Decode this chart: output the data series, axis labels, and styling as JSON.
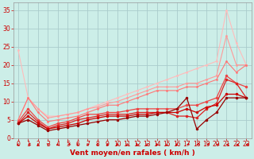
{
  "title": "",
  "xlabel": "Vent moyen/en rafales ( km/h )",
  "xlim": [
    -0.5,
    23.5
  ],
  "ylim": [
    0,
    37
  ],
  "yticks": [
    0,
    5,
    10,
    15,
    20,
    25,
    30,
    35
  ],
  "xticks": [
    0,
    1,
    2,
    3,
    4,
    5,
    6,
    7,
    8,
    9,
    10,
    11,
    12,
    13,
    14,
    15,
    16,
    17,
    18,
    19,
    20,
    21,
    22,
    23
  ],
  "background_color": "#cceee8",
  "grid_color": "#aacccc",
  "lines": [
    {
      "x": [
        0,
        1,
        2,
        3,
        4,
        5,
        6,
        7,
        8,
        9,
        10,
        11,
        12,
        13,
        14,
        15,
        16,
        17,
        18,
        19,
        20,
        21,
        22,
        23
      ],
      "y": [
        24,
        11,
        8,
        6,
        6,
        6.5,
        7,
        8,
        9,
        10,
        11,
        12,
        13,
        14,
        15,
        16,
        17,
        18,
        19,
        20,
        21,
        35,
        26,
        20
      ],
      "color": "#ffbbbb",
      "linewidth": 0.8,
      "marker": "o",
      "markersize": 2.0
    },
    {
      "x": [
        0,
        1,
        2,
        3,
        4,
        5,
        6,
        7,
        8,
        9,
        10,
        11,
        12,
        13,
        14,
        15,
        16,
        17,
        18,
        19,
        20,
        21,
        22,
        23
      ],
      "y": [
        5,
        11,
        8,
        5.5,
        6,
        6.5,
        7,
        8,
        8.5,
        9.5,
        10,
        11,
        12,
        13,
        14,
        14,
        14,
        15,
        15,
        16,
        17,
        28,
        20,
        20
      ],
      "color": "#ff9999",
      "linewidth": 0.8,
      "marker": "o",
      "markersize": 2.0
    },
    {
      "x": [
        0,
        1,
        2,
        3,
        4,
        5,
        6,
        7,
        8,
        9,
        10,
        11,
        12,
        13,
        14,
        15,
        16,
        17,
        18,
        19,
        20,
        21,
        22,
        23
      ],
      "y": [
        5,
        11,
        7,
        4.5,
        5,
        5.5,
        6,
        7,
        8,
        9,
        9,
        10,
        11,
        12,
        13,
        13,
        13,
        14,
        14,
        15,
        16,
        21,
        18,
        20
      ],
      "color": "#ff7777",
      "linewidth": 0.8,
      "marker": "o",
      "markersize": 2.0
    },
    {
      "x": [
        0,
        1,
        2,
        3,
        4,
        5,
        6,
        7,
        8,
        9,
        10,
        11,
        12,
        13,
        14,
        15,
        16,
        17,
        18,
        19,
        20,
        21,
        22,
        23
      ],
      "y": [
        4.5,
        8,
        5,
        3,
        4,
        4.5,
        5.5,
        6.5,
        6.5,
        7,
        7,
        7.5,
        8,
        8,
        8,
        8,
        8,
        9,
        9,
        10,
        11,
        17,
        15,
        14
      ],
      "color": "#ee4444",
      "linewidth": 0.9,
      "marker": "o",
      "markersize": 2.5
    },
    {
      "x": [
        0,
        1,
        2,
        3,
        4,
        5,
        6,
        7,
        8,
        9,
        10,
        11,
        12,
        13,
        14,
        15,
        16,
        17,
        18,
        19,
        20,
        21,
        22,
        23
      ],
      "y": [
        4,
        7,
        4.5,
        2.5,
        3.5,
        4,
        5,
        5.5,
        6,
        6.5,
        6.5,
        6.5,
        7,
        7,
        7,
        7,
        6,
        6,
        5.5,
        8,
        9.5,
        16,
        15,
        11
      ],
      "color": "#dd2222",
      "linewidth": 0.9,
      "marker": "o",
      "markersize": 2.5
    },
    {
      "x": [
        0,
        1,
        2,
        3,
        4,
        5,
        6,
        7,
        8,
        9,
        10,
        11,
        12,
        13,
        14,
        15,
        16,
        17,
        18,
        19,
        20,
        21,
        22,
        23
      ],
      "y": [
        4,
        6,
        4,
        2.5,
        3,
        3.5,
        4,
        5,
        5.5,
        6,
        6,
        6,
        6.5,
        6.5,
        7,
        7,
        7,
        8,
        7,
        8.5,
        9,
        12,
        12,
        11
      ],
      "color": "#cc0000",
      "linewidth": 0.9,
      "marker": "o",
      "markersize": 2.5
    },
    {
      "x": [
        0,
        1,
        2,
        3,
        4,
        5,
        6,
        7,
        8,
        9,
        10,
        11,
        12,
        13,
        14,
        15,
        16,
        17,
        18,
        19,
        20,
        21,
        22,
        23
      ],
      "y": [
        4,
        5,
        3.5,
        2,
        2.5,
        3,
        3.5,
        4,
        4.5,
        5,
        5,
        5.5,
        6,
        6,
        6.5,
        7,
        8,
        11,
        2.5,
        5,
        7,
        11,
        11,
        11
      ],
      "color": "#990000",
      "linewidth": 0.9,
      "marker": "o",
      "markersize": 2.5
    }
  ],
  "tick_label_fontsize": 5.5,
  "xlabel_fontsize": 6.5,
  "tick_color": "#cc0000",
  "label_color": "#cc0000",
  "arrow_angles": [
    225,
    200,
    240,
    270,
    220,
    210,
    240,
    250,
    240,
    230,
    240,
    245,
    250,
    245,
    240,
    235,
    225,
    210,
    210,
    200,
    195,
    190,
    185,
    180
  ]
}
